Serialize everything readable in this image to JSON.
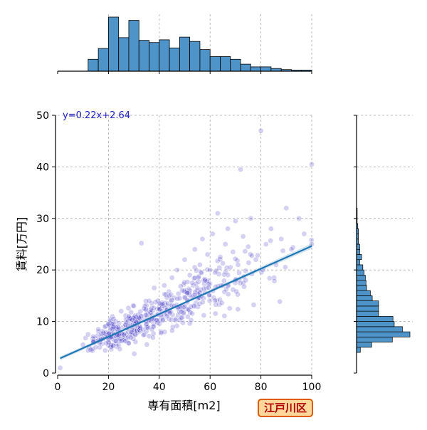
{
  "chart_data": {
    "type": "scatter",
    "xlabel": "専有面積[m2]",
    "ylabel": "賃料[万円]",
    "xlim": [
      0,
      100
    ],
    "ylim": [
      0,
      50
    ],
    "xticks": [
      0,
      20,
      40,
      60,
      80,
      100
    ],
    "yticks": [
      0,
      10,
      20,
      30,
      40,
      50
    ],
    "xtick_labels": [
      "0",
      "20",
      "40",
      "60",
      "80",
      "100"
    ],
    "ytick_labels": [
      "0",
      "10",
      "20",
      "30",
      "40",
      "50"
    ],
    "grid": true,
    "point_color": "#3a2fc4",
    "regression_color": "#1f77b4",
    "hist_color": "#4f94c9",
    "text_color_equation": "#2020c0",
    "regression": {
      "equation_label": "y=0.22x+2.64",
      "slope": 0.22,
      "intercept": 2.64,
      "x_range": [
        1,
        100
      ]
    },
    "scatter_points_sample": [
      [
        1,
        1
      ],
      [
        10,
        5.5
      ],
      [
        11,
        6.8
      ],
      [
        12,
        7.5
      ],
      [
        13,
        4.5
      ],
      [
        14,
        6.2
      ],
      [
        15,
        5
      ],
      [
        16,
        8.5
      ],
      [
        17,
        6.5
      ],
      [
        18,
        7.8
      ],
      [
        19,
        5.8
      ],
      [
        20,
        9.5
      ],
      [
        21,
        7
      ],
      [
        22,
        10.5
      ],
      [
        23,
        6.2
      ],
      [
        24,
        8.8
      ],
      [
        25,
        12
      ],
      [
        26,
        7.5
      ],
      [
        27,
        9.8
      ],
      [
        28,
        11
      ],
      [
        29,
        8
      ],
      [
        30,
        13
      ],
      [
        31,
        9.2
      ],
      [
        32,
        10.8
      ],
      [
        33,
        25.2
      ],
      [
        34,
        12.5
      ],
      [
        35,
        9.5
      ],
      [
        36,
        14
      ],
      [
        37,
        11.2
      ],
      [
        38,
        16.5
      ],
      [
        39,
        10.2
      ],
      [
        40,
        13.5
      ],
      [
        41,
        12
      ],
      [
        42,
        17
      ],
      [
        43,
        11
      ],
      [
        44,
        15
      ],
      [
        45,
        18.5
      ],
      [
        46,
        13
      ],
      [
        47,
        20
      ],
      [
        48,
        14.5
      ],
      [
        49,
        16
      ],
      [
        50,
        22
      ],
      [
        51,
        15.5
      ],
      [
        52,
        19
      ],
      [
        53,
        17.5
      ],
      [
        54,
        24
      ],
      [
        55,
        16.5
      ],
      [
        56,
        21
      ],
      [
        57,
        26
      ],
      [
        58,
        18
      ],
      [
        59,
        23
      ],
      [
        60,
        20
      ],
      [
        61,
        27
      ],
      [
        62,
        19.5
      ],
      [
        63,
        31
      ],
      [
        64,
        22.5
      ],
      [
        65,
        17
      ],
      [
        66,
        25
      ],
      [
        67,
        28
      ],
      [
        68,
        20.5
      ],
      [
        69,
        23.5
      ],
      [
        70,
        29.5
      ],
      [
        71,
        21
      ],
      [
        72,
        39.5
      ],
      [
        73,
        26.5
      ],
      [
        74,
        18
      ],
      [
        75,
        24.5
      ],
      [
        76,
        30
      ],
      [
        78,
        22
      ],
      [
        80,
        47
      ],
      [
        82,
        25
      ],
      [
        84,
        28
      ],
      [
        86,
        21
      ],
      [
        88,
        26
      ],
      [
        90,
        32
      ],
      [
        92,
        24
      ],
      [
        95,
        30
      ],
      [
        97,
        27
      ],
      [
        100,
        40.5
      ],
      [
        100,
        25
      ]
    ]
  },
  "x_histogram": {
    "bin_edges": [
      0,
      4,
      8,
      12,
      16,
      20,
      24,
      28,
      32,
      36,
      40,
      44,
      48,
      52,
      56,
      60,
      64,
      68,
      72,
      76,
      80,
      84,
      88,
      92,
      96,
      100
    ],
    "counts": [
      0,
      0,
      0,
      22,
      42,
      100,
      62,
      94,
      57,
      53,
      58,
      43,
      63,
      55,
      40,
      27,
      27,
      22,
      13,
      8,
      8,
      5,
      3,
      2,
      2
    ]
  },
  "y_histogram": {
    "bin_edges": [
      0,
      1,
      2,
      3,
      4,
      5,
      6,
      7,
      8,
      9,
      10,
      11,
      12,
      13,
      14,
      15,
      16,
      17,
      18,
      19,
      20,
      21,
      22,
      23,
      24,
      25,
      26,
      27,
      28,
      29,
      30,
      31,
      32,
      33,
      34,
      35
    ],
    "counts": [
      0,
      0,
      0,
      0,
      6,
      24,
      57,
      85,
      73,
      60,
      58,
      35,
      35,
      35,
      25,
      22,
      16,
      15,
      14,
      12,
      10,
      5,
      8,
      5,
      5,
      3,
      3,
      3,
      2,
      1,
      1,
      1,
      0,
      0,
      0
    ]
  },
  "ward_badge": "江戸川区"
}
